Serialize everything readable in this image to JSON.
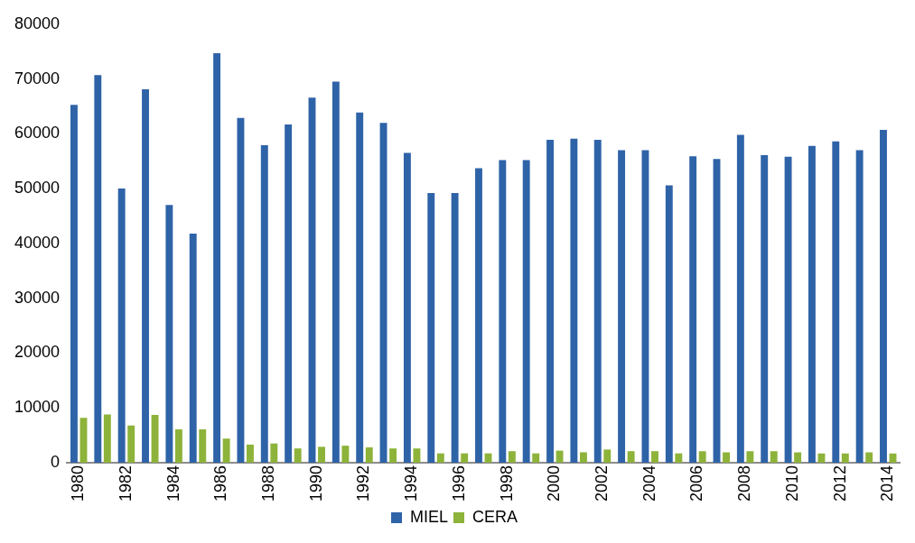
{
  "chart_data": {
    "type": "bar",
    "categories": [
      "1980",
      null,
      "1982",
      null,
      "1984",
      null,
      "1986",
      null,
      "1988",
      null,
      "1990",
      null,
      "1992",
      null,
      "1994",
      null,
      "1996",
      null,
      "1998",
      null,
      "2000",
      null,
      "2002",
      null,
      "2004",
      null,
      "2006",
      null,
      "2008",
      null,
      "2010",
      null,
      "2012",
      null,
      "2014"
    ],
    "series": [
      {
        "name": "MIEL",
        "color": "#2e63a8",
        "values": [
          65300,
          70700,
          50000,
          68100,
          47000,
          41800,
          74700,
          62900,
          57900,
          61700,
          66600,
          69500,
          63900,
          62000,
          56500,
          49200,
          49200,
          53700,
          55200,
          55200,
          58900,
          59100,
          58900,
          57000,
          57000,
          50600,
          55900,
          55400,
          59800,
          56100,
          55800,
          57800,
          58600,
          57000,
          60700
        ]
      },
      {
        "name": "CERA",
        "color": "#8db33a",
        "values": [
          8200,
          8800,
          6800,
          8700,
          6100,
          6100,
          4400,
          3300,
          3500,
          2600,
          2900,
          3100,
          2800,
          2600,
          2600,
          1700,
          1700,
          1700,
          2100,
          1700,
          2200,
          1900,
          2400,
          2100,
          2100,
          1700,
          2100,
          1900,
          2100,
          2100,
          1900,
          1700,
          1700,
          1900,
          1700
        ]
      }
    ],
    "ylim": [
      0,
      80000
    ],
    "yticks": [
      0,
      10000,
      20000,
      30000,
      40000,
      50000,
      60000,
      70000,
      80000
    ],
    "grid": false,
    "legend": "bottom"
  }
}
